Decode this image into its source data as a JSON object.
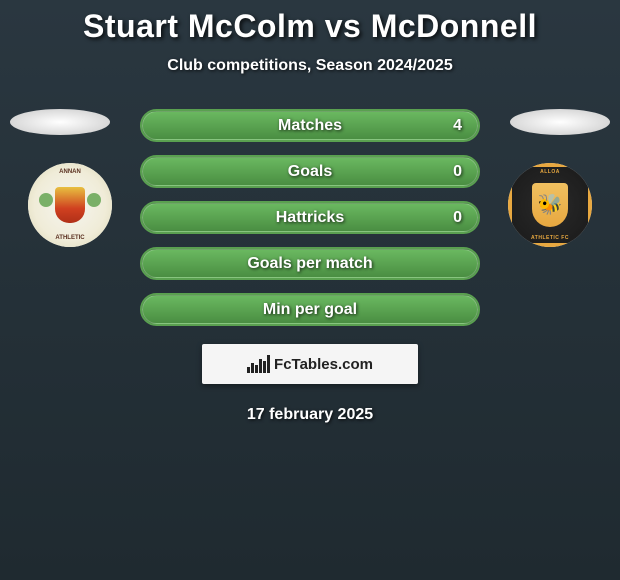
{
  "title": "Stuart McColm vs McDonnell",
  "subtitle": "Club competitions, Season 2024/2025",
  "player_left": {
    "badge_top": "ANNAN",
    "badge_bottom": "ATHLETIC"
  },
  "player_right": {
    "badge_top": "ALLOA",
    "badge_bottom": "ATHLETIC FC"
  },
  "stats": [
    {
      "label": "Matches",
      "value": "4",
      "fill_pct": 100
    },
    {
      "label": "Goals",
      "value": "0",
      "fill_pct": 100
    },
    {
      "label": "Hattricks",
      "value": "0",
      "fill_pct": 100
    },
    {
      "label": "Goals per match",
      "value": "",
      "fill_pct": 100
    },
    {
      "label": "Min per goal",
      "value": "",
      "fill_pct": 100
    }
  ],
  "branding": "FcTables.com",
  "footer_date": "17 february 2025",
  "colors": {
    "bar_border": "#5aa050",
    "bar_fill_top": "#6ab860",
    "bar_fill_bot": "#4a8e42",
    "bg_top": "#2a3740",
    "bg_bot": "#1f2a30"
  }
}
